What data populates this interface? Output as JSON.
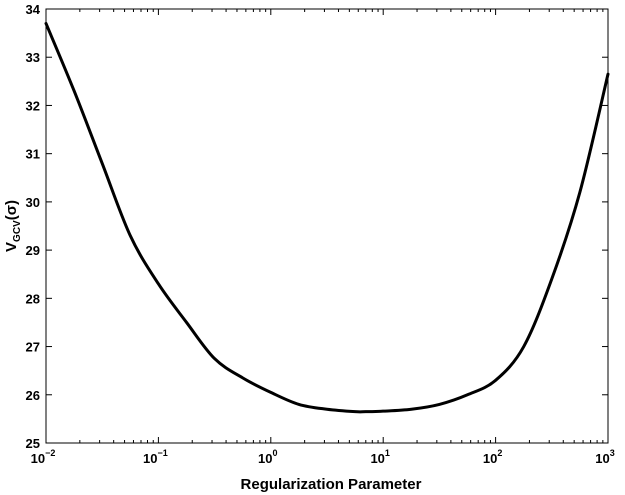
{
  "chart_data": {
    "type": "line",
    "title": "",
    "xlabel": "Regularization Parameter",
    "ylabel": {
      "main": "V",
      "subscript": "GCV",
      "suffix": "(σ)"
    },
    "xscale": "log",
    "xlim": [
      0.01,
      1000
    ],
    "ylim": [
      25,
      34
    ],
    "xticks": [
      {
        "value": 0.01,
        "base": "10",
        "exponent": "−2"
      },
      {
        "value": 0.1,
        "base": "10",
        "exponent": "−1"
      },
      {
        "value": 1,
        "base": "10",
        "exponent": "0"
      },
      {
        "value": 10,
        "base": "10",
        "exponent": "1"
      },
      {
        "value": 100,
        "base": "10",
        "exponent": "2"
      },
      {
        "value": 1000,
        "base": "10",
        "exponent": "3"
      }
    ],
    "yticks": [
      "25",
      "26",
      "27",
      "28",
      "29",
      "30",
      "31",
      "32",
      "33",
      "34"
    ],
    "grid": false,
    "legend": "none",
    "line_color": "#000000",
    "series": [
      {
        "x": [
          0.01,
          0.0178,
          0.0316,
          0.0562,
          0.1,
          0.178,
          0.316,
          0.562,
          1,
          1.78,
          3.16,
          5.62,
          7,
          10,
          17.8,
          31.6,
          56.2,
          100,
          178,
          316,
          562,
          1000
        ],
        "values": [
          33.7,
          32.3,
          30.8,
          29.3,
          28.3,
          27.5,
          26.75,
          26.35,
          26.05,
          25.8,
          25.7,
          25.65,
          25.65,
          25.66,
          25.7,
          25.8,
          26.0,
          26.3,
          27.0,
          28.4,
          30.2,
          32.65
        ]
      }
    ]
  }
}
